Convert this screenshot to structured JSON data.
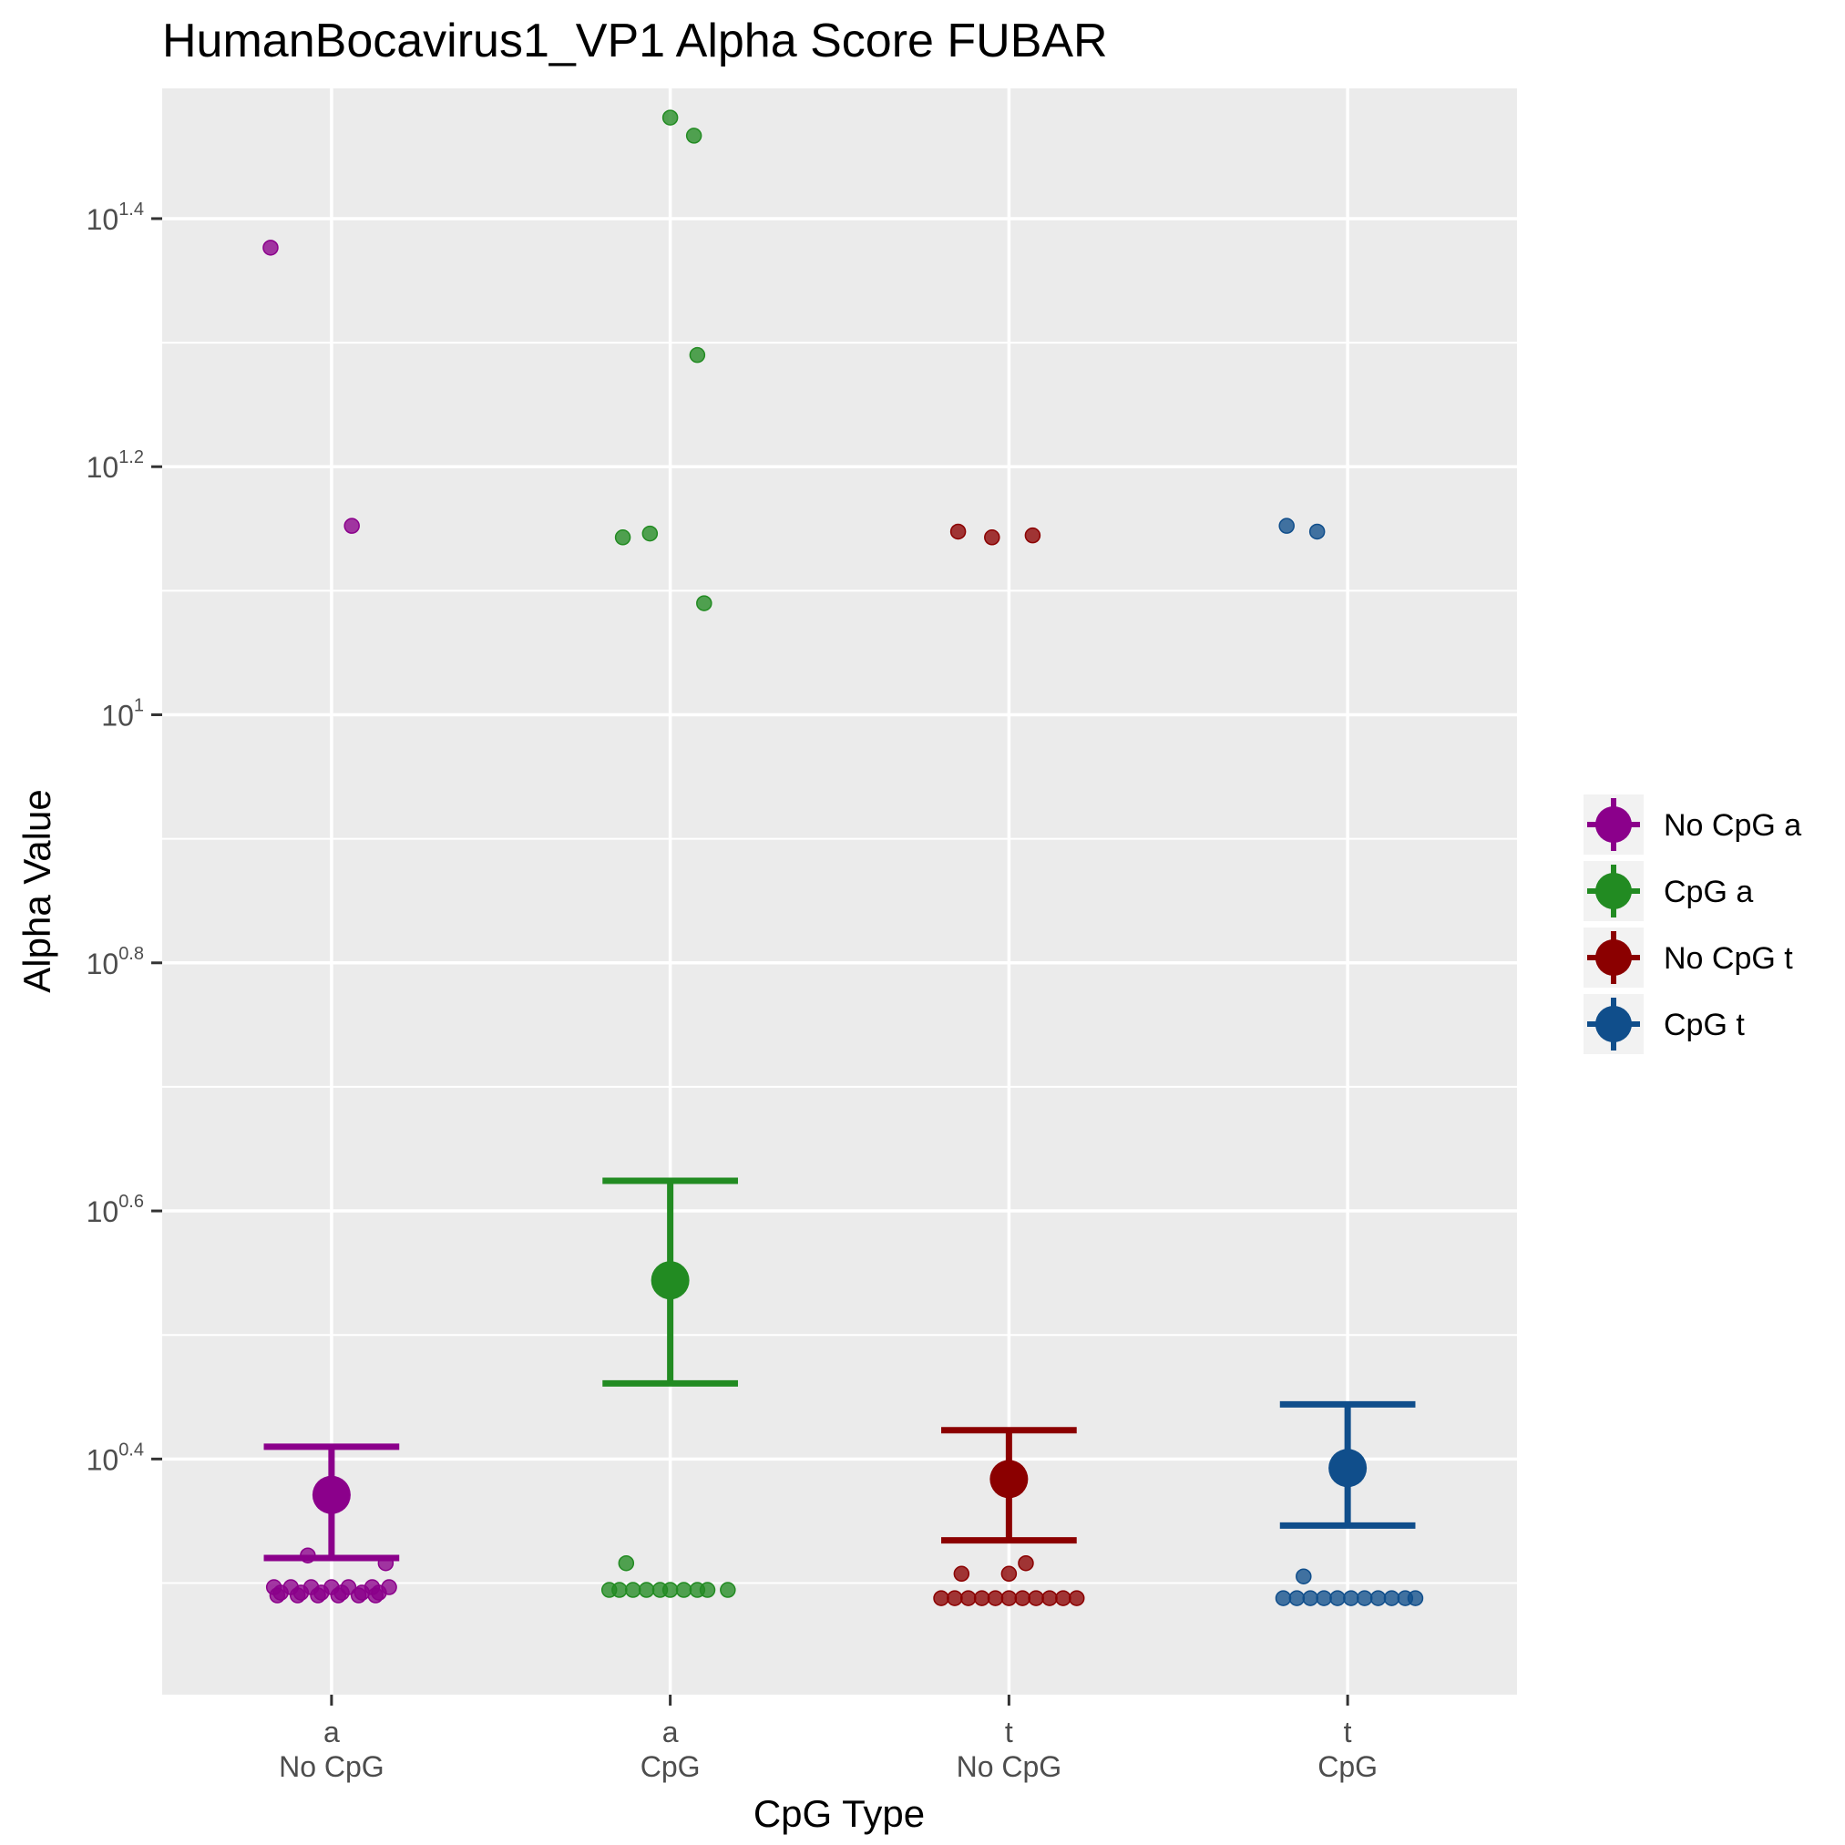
{
  "chart_data": {
    "type": "scatter",
    "title": "HumanBocavirus1_VP1 Alpha Score FUBAR",
    "xlabel": "CpG Type",
    "ylabel": "Alpha Value",
    "y_scale": "log10",
    "ylim_log10": [
      0.21,
      1.505
    ],
    "y_ticks": [
      {
        "log10": 0.4,
        "base": "10",
        "exp": "0.4"
      },
      {
        "log10": 0.6,
        "base": "10",
        "exp": "0.6"
      },
      {
        "log10": 0.8,
        "base": "10",
        "exp": "0.8"
      },
      {
        "log10": 1.0,
        "base": "10",
        "exp": "1"
      },
      {
        "log10": 1.2,
        "base": "10",
        "exp": "1.2"
      },
      {
        "log10": 1.4,
        "base": "10",
        "exp": "1.4"
      }
    ],
    "y_minor_gridlines_log10": [
      0.3,
      0.5,
      0.7,
      0.9,
      1.1,
      1.3
    ],
    "grid": true,
    "legend_position": "right",
    "categories": [
      {
        "top": "a",
        "bottom": "No CpG"
      },
      {
        "top": "a",
        "bottom": "CpG"
      },
      {
        "top": "t",
        "bottom": "No CpG"
      },
      {
        "top": "t",
        "bottom": "CpG"
      }
    ],
    "series": [
      {
        "name": "No CpG a",
        "color": "#8B008B",
        "mean": 2.35,
        "ci": [
          2.09,
          2.57
        ],
        "points": [
          {
            "dx": -0.18,
            "v": 23.8
          },
          {
            "dx": 0.06,
            "v": 14.2
          },
          {
            "dx": -0.07,
            "v": 2.1
          },
          {
            "dx": 0.16,
            "v": 2.07
          },
          {
            "dx": -0.17,
            "v": 1.98
          },
          {
            "dx": -0.12,
            "v": 1.98
          },
          {
            "dx": -0.06,
            "v": 1.98
          },
          {
            "dx": 0.0,
            "v": 1.98
          },
          {
            "dx": 0.05,
            "v": 1.98
          },
          {
            "dx": 0.12,
            "v": 1.98
          },
          {
            "dx": 0.17,
            "v": 1.98
          },
          {
            "dx": -0.15,
            "v": 1.96
          },
          {
            "dx": -0.09,
            "v": 1.96
          },
          {
            "dx": -0.03,
            "v": 1.96
          },
          {
            "dx": 0.03,
            "v": 1.96
          },
          {
            "dx": 0.09,
            "v": 1.96
          },
          {
            "dx": 0.14,
            "v": 1.96
          },
          {
            "dx": -0.16,
            "v": 1.95
          },
          {
            "dx": -0.1,
            "v": 1.95
          },
          {
            "dx": -0.04,
            "v": 1.95
          },
          {
            "dx": 0.02,
            "v": 1.95
          },
          {
            "dx": 0.08,
            "v": 1.95
          },
          {
            "dx": 0.13,
            "v": 1.95
          }
        ]
      },
      {
        "name": "CpG a",
        "color": "#228B22",
        "mean": 3.5,
        "ci": [
          2.89,
          4.21
        ],
        "points": [
          {
            "dx": 0.0,
            "v": 30.3
          },
          {
            "dx": 0.07,
            "v": 29.3
          },
          {
            "dx": 0.08,
            "v": 19.5
          },
          {
            "dx": -0.14,
            "v": 13.9
          },
          {
            "dx": -0.06,
            "v": 14.0
          },
          {
            "dx": 0.1,
            "v": 12.3
          },
          {
            "dx": -0.13,
            "v": 2.07
          },
          {
            "dx": -0.18,
            "v": 1.97
          },
          {
            "dx": -0.15,
            "v": 1.97
          },
          {
            "dx": -0.11,
            "v": 1.97
          },
          {
            "dx": -0.07,
            "v": 1.97
          },
          {
            "dx": -0.03,
            "v": 1.97
          },
          {
            "dx": 0.0,
            "v": 1.97
          },
          {
            "dx": 0.04,
            "v": 1.97
          },
          {
            "dx": 0.08,
            "v": 1.97
          },
          {
            "dx": 0.11,
            "v": 1.97
          },
          {
            "dx": 0.17,
            "v": 1.97
          }
        ]
      },
      {
        "name": "No CpG t",
        "color": "#8B0000",
        "mean": 2.42,
        "ci": [
          2.16,
          2.65
        ],
        "points": [
          {
            "dx": -0.15,
            "v": 14.05
          },
          {
            "dx": -0.05,
            "v": 13.9
          },
          {
            "dx": 0.07,
            "v": 13.95
          },
          {
            "dx": 0.05,
            "v": 2.07
          },
          {
            "dx": -0.14,
            "v": 2.03
          },
          {
            "dx": 0.0,
            "v": 2.03
          },
          {
            "dx": -0.2,
            "v": 1.94
          },
          {
            "dx": -0.16,
            "v": 1.94
          },
          {
            "dx": -0.12,
            "v": 1.94
          },
          {
            "dx": -0.08,
            "v": 1.94
          },
          {
            "dx": -0.04,
            "v": 1.94
          },
          {
            "dx": 0.0,
            "v": 1.94
          },
          {
            "dx": 0.04,
            "v": 1.94
          },
          {
            "dx": 0.08,
            "v": 1.94
          },
          {
            "dx": 0.12,
            "v": 1.94
          },
          {
            "dx": 0.16,
            "v": 1.94
          },
          {
            "dx": 0.2,
            "v": 1.94
          }
        ]
      },
      {
        "name": "CpG t",
        "color": "#104E8B",
        "mean": 2.47,
        "ci": [
          2.22,
          2.78
        ],
        "points": [
          {
            "dx": -0.18,
            "v": 14.2
          },
          {
            "dx": -0.09,
            "v": 14.05
          },
          {
            "dx": -0.13,
            "v": 2.02
          },
          {
            "dx": -0.19,
            "v": 1.94
          },
          {
            "dx": -0.15,
            "v": 1.94
          },
          {
            "dx": -0.11,
            "v": 1.94
          },
          {
            "dx": -0.07,
            "v": 1.94
          },
          {
            "dx": -0.03,
            "v": 1.94
          },
          {
            "dx": 0.01,
            "v": 1.94
          },
          {
            "dx": 0.05,
            "v": 1.94
          },
          {
            "dx": 0.09,
            "v": 1.94
          },
          {
            "dx": 0.13,
            "v": 1.94
          },
          {
            "dx": 0.17,
            "v": 1.94
          },
          {
            "dx": 0.2,
            "v": 1.94
          }
        ]
      }
    ]
  }
}
